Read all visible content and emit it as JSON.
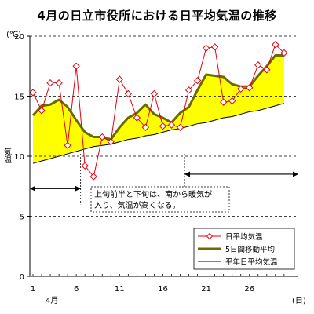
{
  "chart_data": {
    "type": "line",
    "title": "4月の日立市役所における日平均気温の推移",
    "ylabel": "気温",
    "yunit": "(℃)",
    "xunit": "(日)",
    "xmonth": "4月",
    "ylim": [
      0,
      20
    ],
    "xlim": [
      1,
      30
    ],
    "yticks": [
      0,
      5,
      10,
      15,
      20
    ],
    "xticks": [
      1,
      6,
      11,
      16,
      21,
      26
    ],
    "x": [
      1,
      2,
      3,
      4,
      5,
      6,
      7,
      8,
      9,
      10,
      11,
      12,
      13,
      14,
      15,
      16,
      17,
      18,
      19,
      20,
      21,
      22,
      23,
      24,
      25,
      26,
      27,
      28,
      29,
      30
    ],
    "series": [
      {
        "name": "日平均気温",
        "style": "line-marker",
        "color": "#e60012",
        "values": [
          15.3,
          13.8,
          16.1,
          16.1,
          10.9,
          17.5,
          9.2,
          8.3,
          11.6,
          11.2,
          16.4,
          15.2,
          13.2,
          12.4,
          15.2,
          12.5,
          12.6,
          12.4,
          15.5,
          16.3,
          19.0,
          19.1,
          14.5,
          14.6,
          15.6,
          15.7,
          17.6,
          17.2,
          19.3,
          18.6
        ]
      },
      {
        "name": "5日間移動平均",
        "style": "thick-line",
        "color": "#6b6b00",
        "values": [
          13.4,
          14.2,
          14.3,
          14.7,
          14.1,
          13.0,
          12.0,
          11.6,
          11.6,
          11.4,
          12.4,
          13.2,
          13.6,
          14.3,
          13.5,
          13.2,
          12.8,
          13.6,
          14.1,
          15.5,
          16.8,
          16.7,
          16.6,
          16.0,
          15.8,
          15.8,
          16.7,
          17.5,
          18.4,
          18.4
        ]
      },
      {
        "name": "平年日平均気温",
        "style": "thin-line",
        "color": "#000000",
        "values": [
          9.4,
          9.6,
          9.8,
          10.0,
          10.2,
          10.4,
          10.6,
          10.8,
          10.9,
          11.0,
          11.2,
          11.4,
          11.5,
          11.7,
          11.8,
          12.0,
          12.2,
          12.3,
          12.5,
          12.7,
          12.8,
          13.0,
          13.2,
          13.3,
          13.5,
          13.7,
          13.8,
          14.0,
          14.2,
          14.4
        ]
      }
    ],
    "annotation": {
      "line1": "上旬前半と下旬は、南から暖気が",
      "line2": "入り、気温が高くなる。"
    },
    "fill_color": "#ffff00",
    "legend_position": "bottom-right",
    "grid": "dashed horizontal"
  }
}
